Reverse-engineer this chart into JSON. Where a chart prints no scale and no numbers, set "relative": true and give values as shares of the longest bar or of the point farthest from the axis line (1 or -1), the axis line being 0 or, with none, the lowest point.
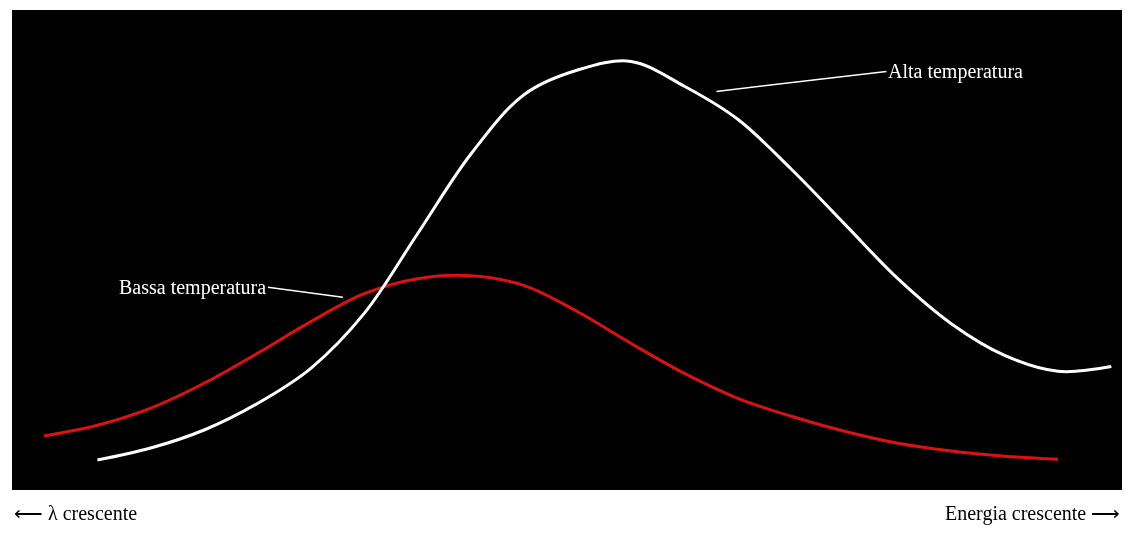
{
  "chart_data": {
    "type": "line",
    "relative": true,
    "legend": false,
    "categories": [
      null,
      null,
      null,
      null,
      null,
      null,
      null,
      null,
      null,
      null,
      null,
      null,
      null,
      null,
      null,
      null,
      null,
      null,
      null,
      null,
      null
    ],
    "series": [
      {
        "color": "#dd1111",
        "values": [
          0.126,
          0.151,
          0.191,
          0.249,
          0.319,
          0.393,
          0.458,
          0.493,
          0.5,
          0.477,
          0.416,
          0.342,
          0.272,
          0.214,
          0.172,
          0.137,
          0.109,
          0.091,
          0.079,
          0.072,
          null
        ]
      },
      {
        "color": "#ffffff",
        "values": [
          null,
          0.07,
          0.098,
          0.14,
          0.202,
          0.284,
          0.412,
          0.598,
          0.784,
          0.923,
          0.98,
          1,
          0.942,
          0.865,
          0.749,
          0.621,
          0.493,
          0.388,
          0.314,
          0.277,
          0.288
        ]
      }
    ],
    "annotations": [
      "Alta temperatura",
      "Bassa temperatura",
      "⟵ λ crescente",
      "Energia crescente ⟶"
    ]
  }
}
